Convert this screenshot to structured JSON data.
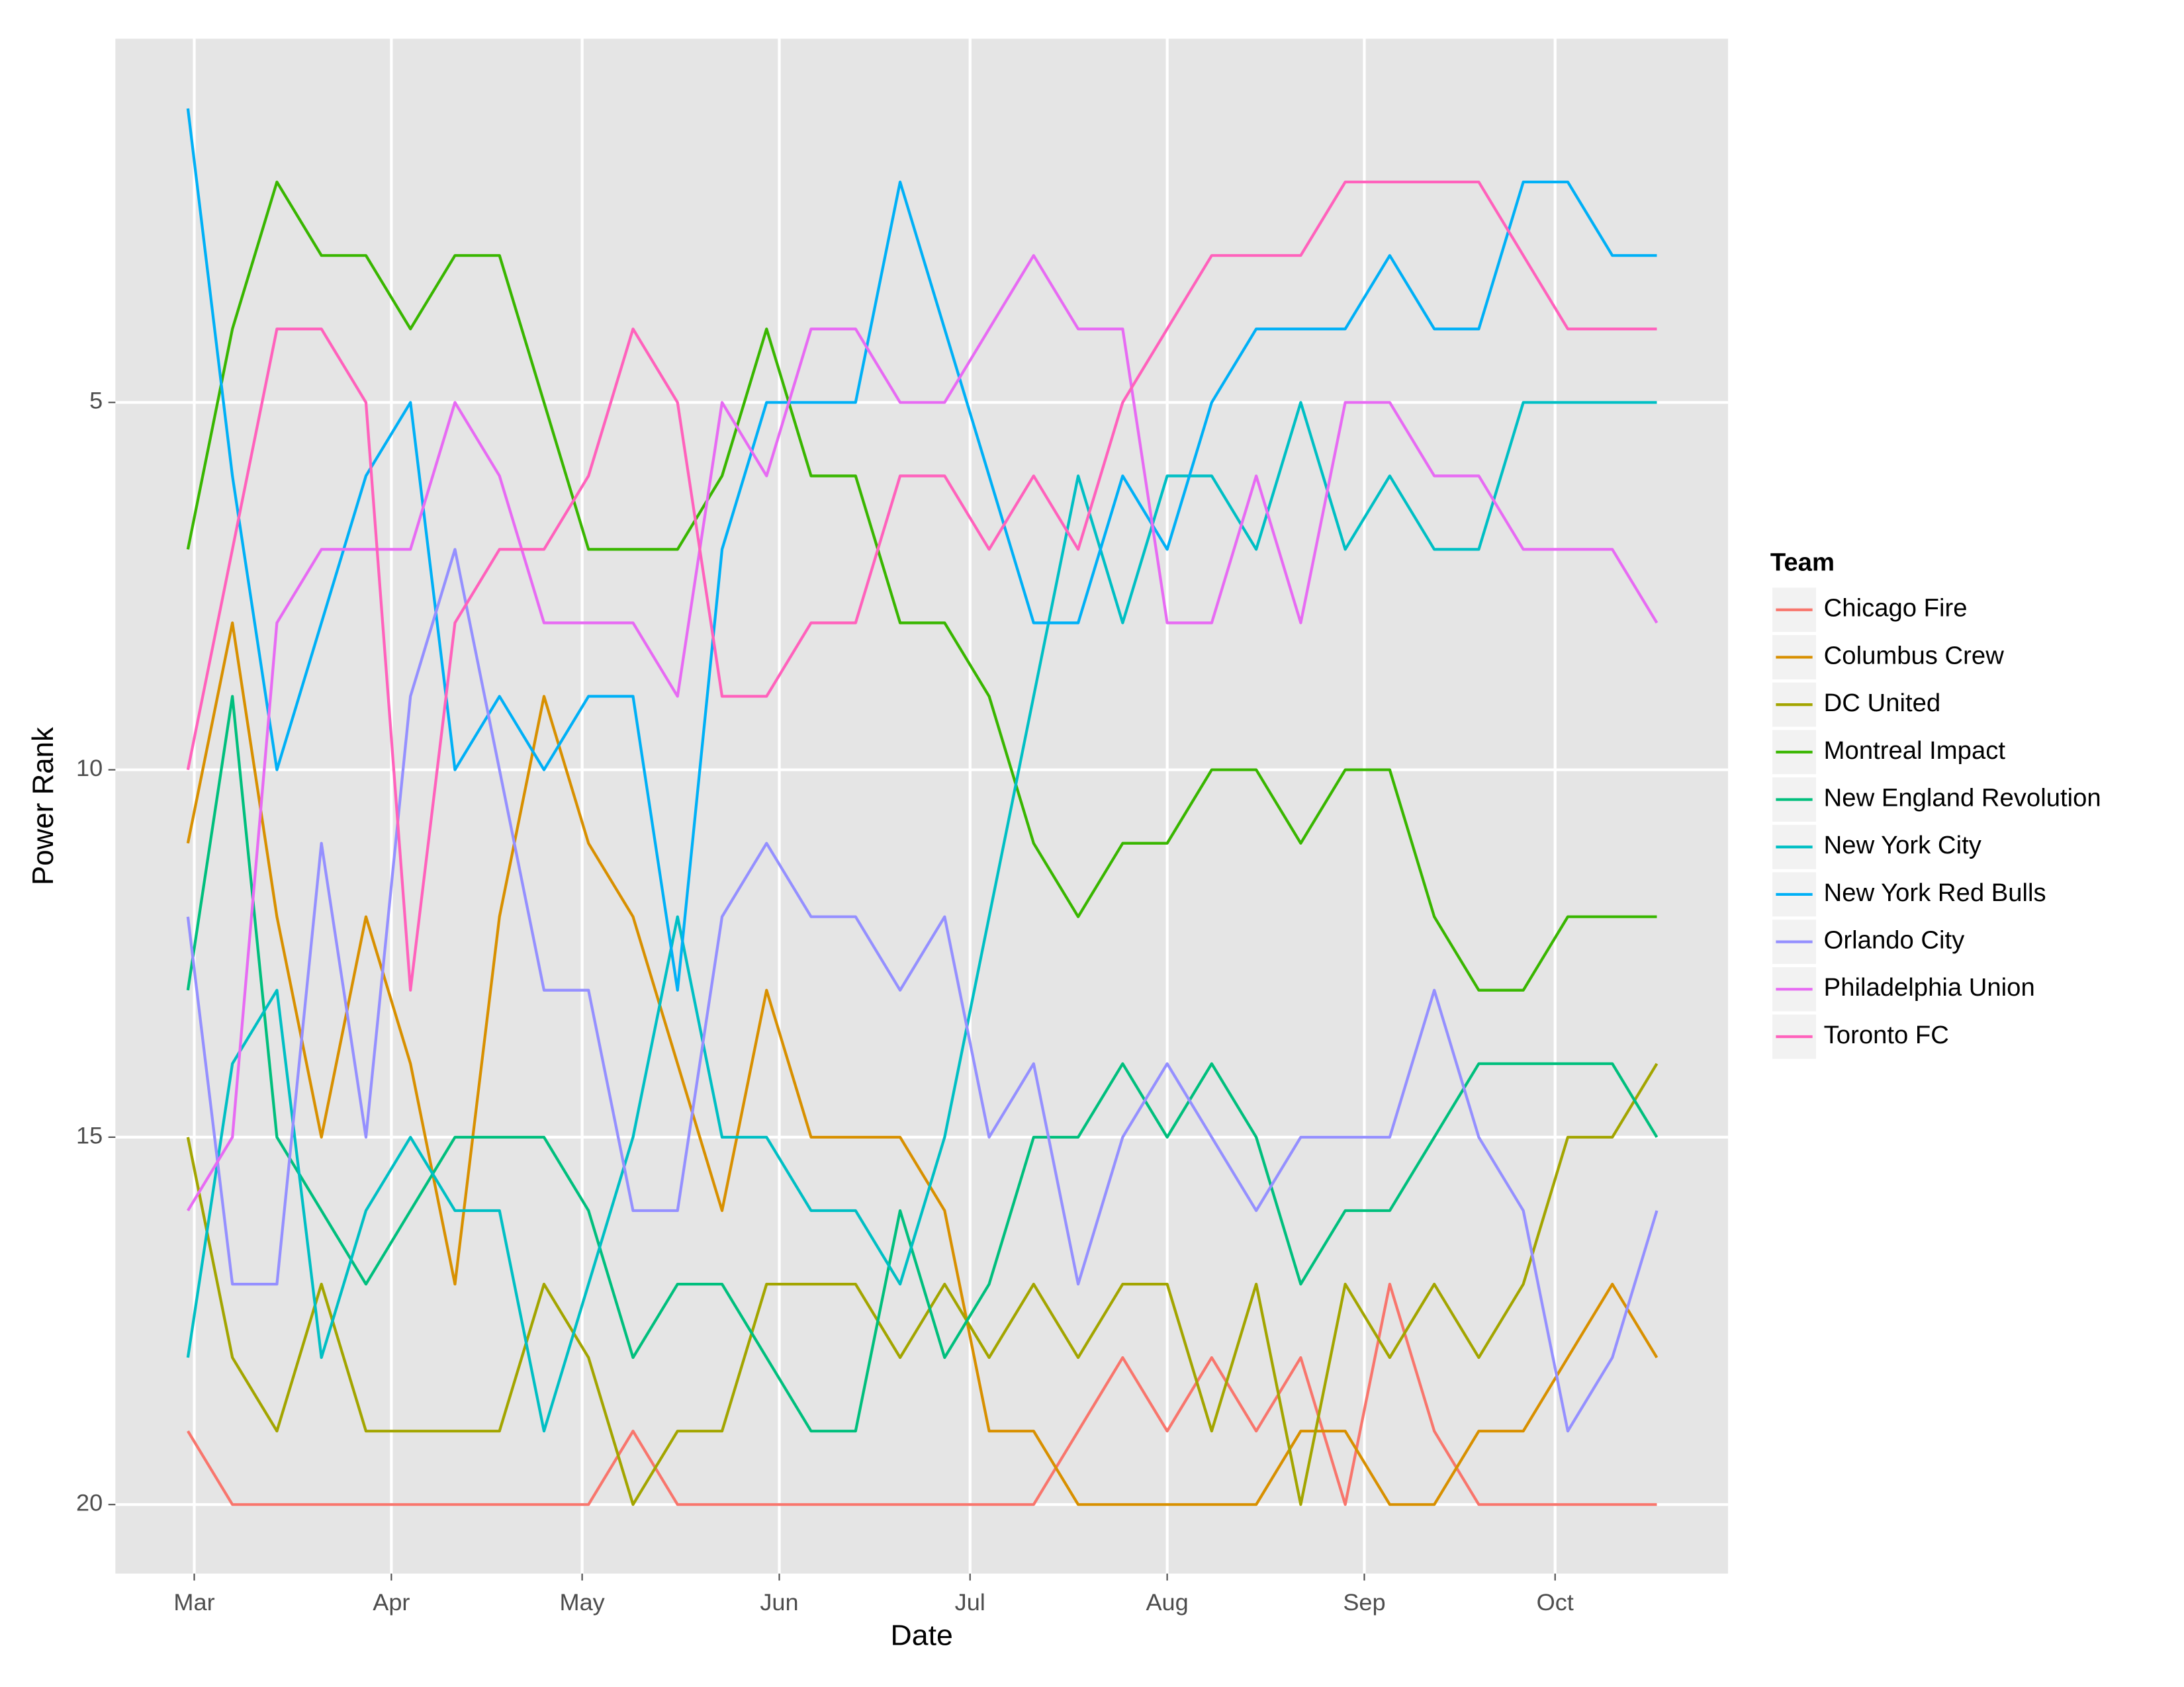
{
  "chart_data": {
    "type": "line",
    "x_label": "Date",
    "y_label": "Power Rank",
    "legend_title": "Team",
    "legend_position": "right",
    "grid": true,
    "xlim": [
      -12.4,
      241.2
    ],
    "xticks": [
      {
        "value": 0,
        "label": "Mar"
      },
      {
        "value": 31,
        "label": "Apr"
      },
      {
        "value": 61,
        "label": "May"
      },
      {
        "value": 92,
        "label": "Jun"
      },
      {
        "value": 122,
        "label": "Jul"
      },
      {
        "value": 153,
        "label": "Aug"
      },
      {
        "value": 184,
        "label": "Sep"
      },
      {
        "value": 214,
        "label": "Oct"
      }
    ],
    "ylim": [
      20.94,
      0.05
    ],
    "yticks": [
      5,
      10,
      15,
      20
    ],
    "x": [
      -1,
      6,
      13,
      20,
      27,
      34,
      41,
      48,
      55,
      62,
      69,
      76,
      83,
      90,
      97,
      104,
      111,
      118,
      125,
      132,
      139,
      146,
      153,
      160,
      167,
      174,
      181,
      188,
      195,
      202,
      209,
      216,
      223,
      230
    ],
    "series": [
      {
        "name": "Chicago Fire",
        "color": "#F8766D",
        "values": [
          19,
          20,
          20,
          20,
          20,
          20,
          20,
          20,
          20,
          20,
          19,
          20,
          20,
          20,
          20,
          20,
          20,
          20,
          20,
          20,
          19,
          18,
          19,
          18,
          19,
          18,
          20,
          17,
          19,
          20,
          20,
          20,
          20,
          20
        ]
      },
      {
        "name": "Columbus Crew",
        "color": "#D89000",
        "values": [
          11,
          8,
          12,
          15,
          12,
          14,
          17,
          12,
          9,
          11,
          12,
          14,
          16,
          13,
          15,
          15,
          15,
          16,
          19,
          19,
          20,
          20,
          20,
          20,
          20,
          19,
          19,
          20,
          20,
          19,
          19,
          18,
          17,
          18
        ]
      },
      {
        "name": "DC United",
        "color": "#A3A500",
        "values": [
          15,
          18,
          19,
          17,
          19,
          19,
          19,
          19,
          17,
          18,
          20,
          19,
          19,
          17,
          17,
          17,
          18,
          17,
          18,
          17,
          18,
          17,
          17,
          19,
          17,
          20,
          17,
          18,
          17,
          18,
          17,
          15,
          15,
          14
        ]
      },
      {
        "name": "Montreal Impact",
        "color": "#39B600",
        "values": [
          7,
          4,
          2,
          3,
          3,
          4,
          3,
          3,
          5,
          7,
          7,
          7,
          6,
          4,
          6,
          6,
          8,
          8,
          9,
          11,
          12,
          11,
          11,
          10,
          10,
          11,
          10,
          10,
          12,
          13,
          13,
          12,
          12,
          12
        ]
      },
      {
        "name": "New England Revolution",
        "color": "#00BF7D",
        "values": [
          13,
          9,
          15,
          16,
          17,
          16,
          15,
          15,
          15,
          16,
          18,
          17,
          17,
          18,
          19,
          19,
          16,
          18,
          17,
          15,
          15,
          14,
          15,
          14,
          15,
          17,
          16,
          16,
          15,
          14,
          14,
          14,
          14,
          15
        ]
      },
      {
        "name": "New York City",
        "color": "#00BFC4",
        "values": [
          18,
          14,
          13,
          18,
          16,
          15,
          16,
          16,
          19,
          17,
          15,
          12,
          15,
          15,
          16,
          16,
          17,
          15,
          12,
          9,
          6,
          8,
          6,
          6,
          7,
          5,
          7,
          6,
          7,
          7,
          5,
          5,
          5,
          5
        ]
      },
      {
        "name": "New York Red Bulls",
        "color": "#00B0F6",
        "values": [
          1,
          6,
          10,
          8,
          6,
          5,
          10,
          9,
          10,
          9,
          9,
          13,
          7,
          5,
          5,
          5,
          2,
          4,
          6,
          8,
          8,
          6,
          7,
          5,
          4,
          4,
          4,
          3,
          4,
          4,
          2,
          2,
          3,
          3
        ]
      },
      {
        "name": "Orlando City",
        "color": "#9590FF",
        "values": [
          12,
          17,
          17,
          11,
          15,
          9,
          7,
          10,
          13,
          13,
          16,
          16,
          12,
          11,
          12,
          12,
          13,
          12,
          15,
          14,
          17,
          15,
          14,
          15,
          16,
          15,
          15,
          15,
          13,
          15,
          16,
          19,
          18,
          16
        ]
      },
      {
        "name": "Philadelphia Union",
        "color": "#E76BF3",
        "values": [
          16,
          15,
          8,
          7,
          7,
          7,
          5,
          6,
          8,
          8,
          8,
          9,
          5,
          6,
          4,
          4,
          5,
          5,
          4,
          3,
          4,
          4,
          8,
          8,
          6,
          8,
          5,
          5,
          6,
          6,
          7,
          7,
          7,
          8
        ]
      },
      {
        "name": "Toronto FC",
        "color": "#FF62BC",
        "values": [
          10,
          7,
          4,
          4,
          5,
          13,
          8,
          7,
          7,
          6,
          4,
          5,
          9,
          9,
          8,
          8,
          6,
          6,
          7,
          6,
          7,
          5,
          4,
          3,
          3,
          3,
          2,
          2,
          2,
          2,
          3,
          4,
          4,
          4
        ]
      }
    ]
  }
}
